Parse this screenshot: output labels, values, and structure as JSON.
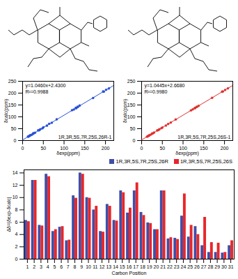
{
  "chart_data": [
    {
      "type": "scatter",
      "label": "1R,3R,5S,7R,25S,26R-1",
      "equation": "y=1.0460x+2.4300",
      "r2_label": "R²=0.9988",
      "fit": {
        "slope": 1.046,
        "intercept": 2.43
      },
      "x_label": "δexp(ppm)",
      "y_label": "δcalc(ppm)",
      "xlim": [
        0,
        220
      ],
      "ylim": [
        0,
        250
      ],
      "xticks": [
        0,
        50,
        100,
        150,
        200
      ],
      "yticks": [
        0,
        50,
        100,
        150,
        200,
        250
      ],
      "color": "#2a52d6",
      "x": [
        208.2,
        201.5,
        195.9,
        194.3,
        170.1,
        137.5,
        133.2,
        132.8,
        129.1,
        128.4,
        123.6,
        119.2,
        82.3,
        70.4,
        64.1,
        58.6,
        50.1,
        47.9,
        42.7,
        40.3,
        37.6,
        30.1,
        26.3,
        25.9,
        25.7,
        22.1,
        18.3,
        17.9,
        16.2,
        14.7,
        12.9
      ],
      "y": [
        219.5,
        214.0,
        206.1,
        207.0,
        179.6,
        147.4,
        141.0,
        142.6,
        136.2,
        137.8,
        131.0,
        128.0,
        89.4,
        75.2,
        70.6,
        62.8,
        55.9,
        51.6,
        48.0,
        43.7,
        42.9,
        33.2,
        30.8,
        28.7,
        29.9,
        24.6,
        22.3,
        20.5,
        19.9,
        17.2,
        16.4
      ]
    },
    {
      "type": "scatter",
      "label": "1R,3R,5S,7R,25S,26S-1",
      "equation": "y=1.0445x+2.6680",
      "r2_label": "R²=0.9980",
      "fit": {
        "slope": 1.0445,
        "intercept": 2.668
      },
      "x_label": "δexp(ppm)",
      "y_label": "δcalc(ppm)",
      "xlim": [
        0,
        220
      ],
      "ylim": [
        0,
        250
      ],
      "xticks": [
        0,
        50,
        100,
        150,
        200
      ],
      "yticks": [
        0,
        50,
        100,
        150,
        200,
        250
      ],
      "color": "#e0312f",
      "x": [
        208.2,
        201.5,
        195.9,
        194.3,
        170.1,
        137.5,
        133.2,
        132.8,
        129.1,
        128.4,
        123.6,
        119.2,
        82.3,
        70.4,
        64.1,
        58.6,
        50.1,
        47.9,
        42.7,
        40.3,
        37.6,
        30.1,
        26.3,
        25.9,
        25.7,
        22.1,
        18.3,
        17.9,
        16.2,
        14.7,
        12.9
      ],
      "y": [
        219.9,
        213.1,
        206.8,
        206.2,
        180.3,
        146.5,
        141.9,
        142.0,
        136.9,
        137.1,
        131.5,
        127.4,
        88.8,
        75.9,
        70.0,
        63.4,
        55.1,
        52.3,
        47.3,
        44.2,
        42.4,
        33.6,
        30.2,
        29.4,
        29.1,
        25.2,
        21.9,
        20.9,
        19.6,
        17.6,
        16.0
      ]
    },
    {
      "type": "bar",
      "x_label": "Carbon Position",
      "y_label": "Δδ=|δexp-δcalc|",
      "legend": "top",
      "categories": [
        1,
        2,
        3,
        4,
        5,
        6,
        7,
        8,
        9,
        10,
        11,
        12,
        13,
        14,
        15,
        16,
        17,
        18,
        19,
        20,
        21,
        22,
        23,
        24,
        25,
        26,
        27,
        28,
        29,
        30,
        31
      ],
      "ylim": [
        0,
        14.5
      ],
      "yticks": [
        0,
        2,
        4,
        6,
        8,
        10,
        12,
        14
      ],
      "series": [
        {
          "name": "1R,3R,5S,7R,25S,26R",
          "color": "#3f4fa8",
          "values": [
            6.3,
            12.8,
            5.5,
            13.8,
            4.5,
            5.2,
            3.0,
            10.3,
            14.0,
            10.0,
            8.0,
            4.5,
            8.9,
            6.3,
            11.1,
            7.5,
            11.1,
            7.6,
            5.9,
            4.8,
            11.1,
            3.3,
            3.4,
            7.0,
            3.6,
            5.3,
            2.2,
            1.1,
            1.1,
            1.0,
            2.2
          ]
        },
        {
          "name": "1R,3R,5S,7R,25S,26S",
          "color": "#e8262a",
          "values": [
            6.1,
            12.8,
            5.4,
            13.4,
            4.8,
            5.3,
            3.1,
            9.9,
            13.8,
            9.9,
            8.6,
            4.4,
            8.6,
            6.2,
            10.8,
            8.3,
            12.4,
            7.1,
            5.8,
            4.8,
            11.1,
            3.5,
            3.2,
            10.6,
            5.5,
            4.0,
            6.8,
            2.7,
            2.6,
            1.1,
            3.0
          ]
        }
      ]
    }
  ]
}
